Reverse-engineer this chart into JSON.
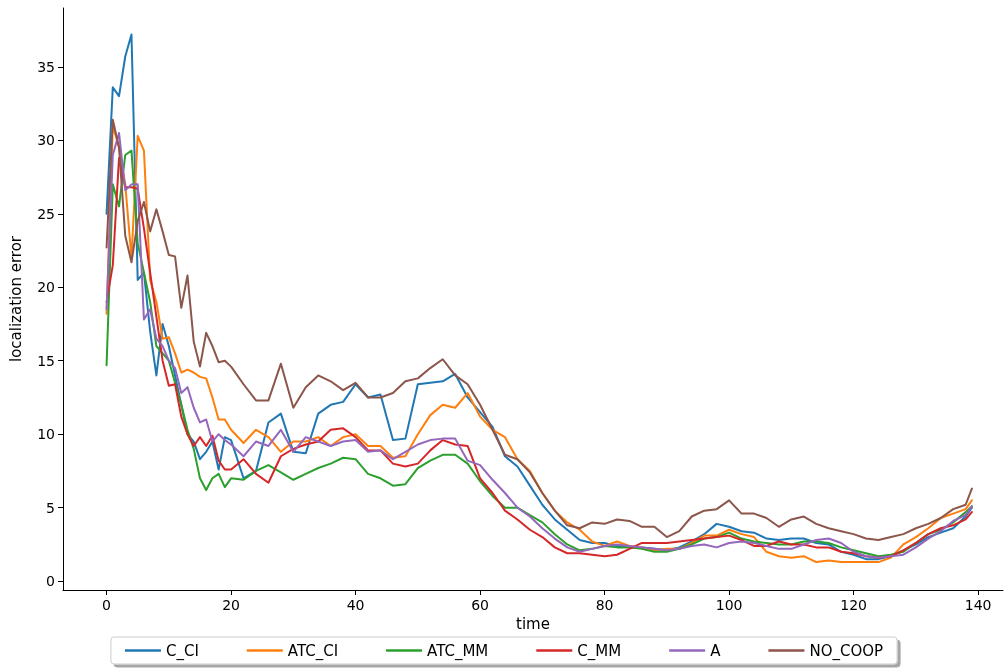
{
  "chart_data": {
    "type": "line",
    "xlabel": "time",
    "ylabel": "localization error",
    "x": [
      0,
      1,
      2,
      3,
      4,
      5,
      6,
      7,
      8,
      9,
      10,
      11,
      12,
      13,
      14,
      15,
      16,
      17,
      18,
      19,
      20,
      22,
      24,
      26,
      28,
      30,
      32,
      34,
      36,
      38,
      40,
      42,
      44,
      46,
      48,
      50,
      52,
      54,
      56,
      58,
      60,
      62,
      64,
      66,
      68,
      70,
      72,
      74,
      76,
      78,
      80,
      82,
      84,
      86,
      88,
      90,
      92,
      94,
      96,
      98,
      100,
      102,
      104,
      106,
      108,
      110,
      112,
      114,
      116,
      118,
      120,
      122,
      124,
      126,
      128,
      130,
      132,
      134,
      136,
      138,
      139
    ],
    "series": [
      {
        "name": "C_CI",
        "color": "#1f77b4",
        "values": [
          25,
          33.6,
          33,
          35.7,
          37.2,
          20.5,
          21,
          17,
          14,
          17.5,
          16,
          14,
          12,
          10,
          9.5,
          8.3,
          8.8,
          9.5,
          7.6,
          9.8,
          9.6,
          7.0,
          7.5,
          10.8,
          11.4,
          8.8,
          8.7,
          11.4,
          12.0,
          12.2,
          13.4,
          12.5,
          12.7,
          9.6,
          9.7,
          13.4,
          13.5,
          13.6,
          14.1,
          12.5,
          11.5,
          10.5,
          8.5,
          7.8,
          6.5,
          5.2,
          4.2,
          3.5,
          2.8,
          2.6,
          2.6,
          2.4,
          2.3,
          2.3,
          2.2,
          2.1,
          2.3,
          2.7,
          3.2,
          3.9,
          3.7,
          3.4,
          3.3,
          2.9,
          2.8,
          2.9,
          2.9,
          2.6,
          2.5,
          2.0,
          1.8,
          1.5,
          1.5,
          1.7,
          2.1,
          2.5,
          3.0,
          3.3,
          3.6,
          4.4,
          5.0
        ]
      },
      {
        "name": "ATC_CI",
        "color": "#ff7f0e",
        "values": [
          18.2,
          31,
          29.5,
          27,
          22,
          30.3,
          29.3,
          20.5,
          19,
          16.5,
          16.6,
          15.5,
          14.2,
          14.4,
          14.2,
          13.9,
          13.8,
          12.5,
          11,
          11,
          10.3,
          9.4,
          10.3,
          9.8,
          8.8,
          9.5,
          9.5,
          9.8,
          9.2,
          9.8,
          10.0,
          9.2,
          9.2,
          8.4,
          8.5,
          10.0,
          11.3,
          12.0,
          11.8,
          12.8,
          11.2,
          10.3,
          9.8,
          8.3,
          7.5,
          6.0,
          4.8,
          4.0,
          3.5,
          2.7,
          2.4,
          2.7,
          2.4,
          2.3,
          2.1,
          2.2,
          2.2,
          2.6,
          3.1,
          3.1,
          3.5,
          3.2,
          3.0,
          2.0,
          1.7,
          1.6,
          1.7,
          1.3,
          1.4,
          1.3,
          1.3,
          1.3,
          1.3,
          1.6,
          2.5,
          3.0,
          3.6,
          4.3,
          4.6,
          4.9,
          5.5
        ]
      },
      {
        "name": "ATC_MM",
        "color": "#2ca02c",
        "values": [
          14.7,
          27,
          25.5,
          29,
          29.3,
          23,
          21,
          19,
          16,
          15.5,
          15,
          13.5,
          12,
          10.3,
          9.0,
          7.0,
          6.2,
          7.0,
          7.3,
          6.4,
          7.0,
          6.9,
          7.5,
          7.9,
          7.4,
          6.9,
          7.3,
          7.7,
          8.0,
          8.4,
          8.3,
          7.3,
          7.0,
          6.5,
          6.6,
          7.7,
          8.2,
          8.6,
          8.6,
          8.0,
          6.8,
          5.8,
          5.0,
          5.0,
          4.5,
          4.0,
          3.2,
          2.5,
          2.1,
          2.2,
          2.4,
          2.3,
          2.3,
          2.2,
          2.0,
          2.0,
          2.2,
          2.5,
          2.9,
          3.0,
          3.3,
          2.9,
          2.7,
          2.6,
          2.5,
          2.5,
          2.7,
          2.7,
          2.6,
          2.3,
          2.1,
          1.9,
          1.7,
          1.8,
          2.0,
          2.6,
          3.2,
          3.5,
          4.0,
          4.7,
          5.1
        ]
      },
      {
        "name": "C_MM",
        "color": "#d62728",
        "values": [
          19,
          21.5,
          28.8,
          26.8,
          26.8,
          26.7,
          24,
          21,
          18,
          15,
          13.3,
          13.4,
          11.2,
          10,
          9.2,
          9.8,
          9.2,
          9.9,
          8.2,
          7.6,
          7.6,
          8.3,
          7.3,
          6.7,
          8.5,
          9.0,
          9.3,
          9.5,
          10.3,
          10.4,
          9.8,
          8.9,
          8.9,
          8.0,
          7.8,
          8.0,
          8.9,
          9.6,
          9.3,
          9.2,
          7.0,
          6.0,
          4.8,
          4.2,
          3.5,
          3.0,
          2.3,
          1.9,
          1.9,
          1.8,
          1.7,
          1.8,
          2.2,
          2.6,
          2.6,
          2.6,
          2.7,
          2.8,
          2.9,
          3.0,
          3.1,
          2.8,
          2.4,
          2.4,
          2.7,
          2.5,
          2.5,
          2.3,
          2.3,
          2.0,
          1.9,
          1.7,
          1.6,
          1.7,
          2.1,
          2.6,
          3.2,
          3.6,
          3.8,
          4.2,
          4.7
        ]
      },
      {
        "name": "A",
        "color": "#9467bd",
        "values": [
          18.5,
          29,
          30.5,
          26.6,
          27,
          27,
          17.8,
          18.5,
          16.5,
          16,
          15,
          14.5,
          12.8,
          13.2,
          11.8,
          10.8,
          11.0,
          9.5,
          10.0,
          9.6,
          9.3,
          8.5,
          9.5,
          9.2,
          10.3,
          8.8,
          9.8,
          9.5,
          9.2,
          9.5,
          9.6,
          8.8,
          8.9,
          8.3,
          8.8,
          9.3,
          9.6,
          9.7,
          9.7,
          8.2,
          7.9,
          6.9,
          6.0,
          5.0,
          4.4,
          3.6,
          2.9,
          2.3,
          2.0,
          2.2,
          2.4,
          2.5,
          2.4,
          2.3,
          2.2,
          2.1,
          2.2,
          2.4,
          2.5,
          2.3,
          2.6,
          2.7,
          2.6,
          2.4,
          2.2,
          2.2,
          2.5,
          2.8,
          2.9,
          2.6,
          2.0,
          1.7,
          1.6,
          1.7,
          1.8,
          2.3,
          2.9,
          3.4,
          4.1,
          4.5,
          5.1
        ]
      },
      {
        "name": "NO_COOP",
        "color": "#8c564b",
        "values": [
          22.7,
          31.4,
          29.5,
          23.5,
          21.7,
          24.5,
          25.8,
          23.8,
          25.3,
          23.8,
          22.2,
          22.1,
          18.6,
          20.8,
          16.3,
          14.6,
          16.9,
          16,
          14.9,
          15,
          14.6,
          13.4,
          12.3,
          12.3,
          14.8,
          11.8,
          13.2,
          14.0,
          13.6,
          13.0,
          13.5,
          12.5,
          12.5,
          12.8,
          13.6,
          13.8,
          14.5,
          15.1,
          14.0,
          13.4,
          12.0,
          10.3,
          8.6,
          8.3,
          7.4,
          6.0,
          4.8,
          3.8,
          3.6,
          4.0,
          3.9,
          4.2,
          4.1,
          3.7,
          3.7,
          3.0,
          3.4,
          4.4,
          4.8,
          4.9,
          5.5,
          4.6,
          4.6,
          4.3,
          3.7,
          4.2,
          4.4,
          3.9,
          3.6,
          3.4,
          3.2,
          2.9,
          2.8,
          3.0,
          3.2,
          3.6,
          3.9,
          4.3,
          4.9,
          5.2,
          6.3
        ]
      }
    ],
    "xlim": [
      -7,
      144
    ],
    "xticks": [
      0,
      20,
      40,
      60,
      80,
      100,
      120,
      140
    ],
    "ylim": [
      -0.6,
      39
    ],
    "yticks": [
      0,
      5,
      10,
      15,
      20,
      25,
      30,
      35
    ],
    "grid": false,
    "legend": "bottom",
    "marker": "none",
    "line_style": "solid"
  }
}
